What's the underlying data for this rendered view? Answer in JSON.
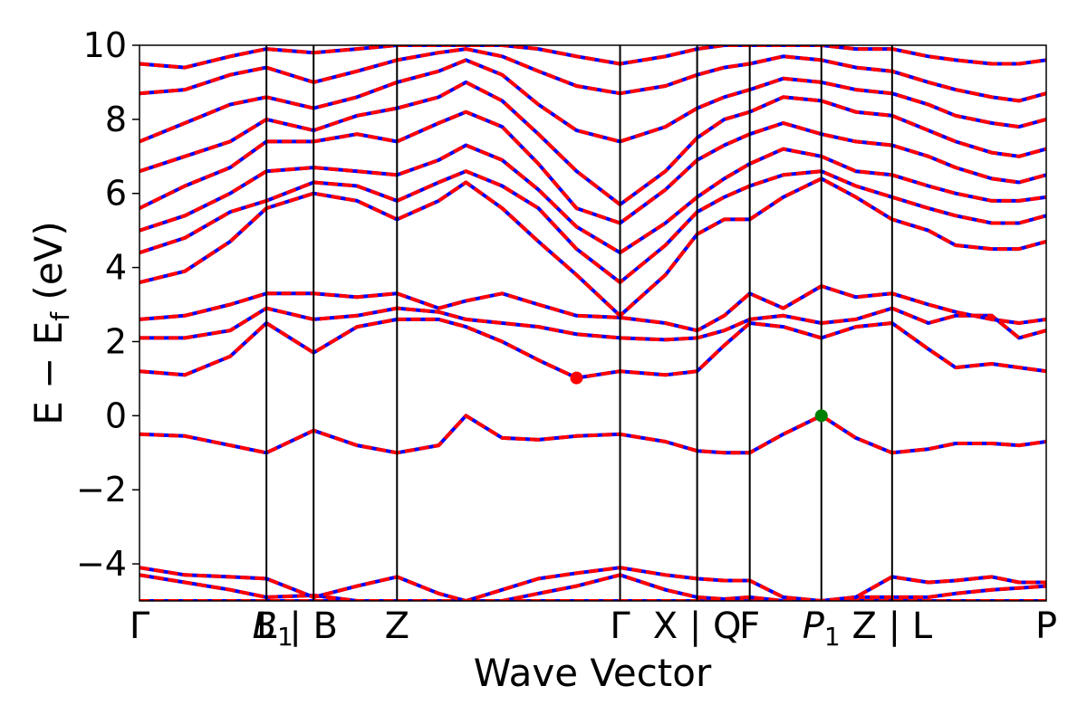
{
  "chart_data": {
    "type": "line",
    "title": "",
    "xlabel": "Wave Vector",
    "ylabel": "E − E_f (eV)",
    "ylabel_main": "E − E",
    "ylabel_sub": "f",
    "ylabel_unit": " (eV)",
    "xlim": [
      0,
      1
    ],
    "ylim": [
      -5,
      10
    ],
    "yticks": [
      -4,
      -2,
      0,
      2,
      4,
      6,
      8,
      10
    ],
    "ytick_labels": [
      "−4",
      "−2",
      "0",
      "2",
      "4",
      "6",
      "8",
      "10"
    ],
    "grid": false,
    "legend": "none",
    "colors": {
      "series_a": "#0000ff",
      "series_b": "#ff0000",
      "cbm_marker": "#ff0000",
      "vbm_marker": "#008000",
      "kpath_lines": "#000000"
    },
    "kpath": [
      {
        "x": 0.0,
        "label": "Γ"
      },
      {
        "x": 0.14,
        "label": "L",
        "line": true
      },
      {
        "x": 0.147,
        "label": "B",
        "sub": "1",
        "italic": true
      },
      {
        "x": 0.192,
        "label": "| B",
        "line": true
      },
      {
        "x": 0.284,
        "label": "Z",
        "line": true
      },
      {
        "x": 0.53,
        "label": "Γ",
        "line": true
      },
      {
        "x": 0.615,
        "label": "X | Q",
        "line": true
      },
      {
        "x": 0.673,
        "label": "F",
        "line": true
      },
      {
        "x": 0.752,
        "label": "P",
        "sub": "1",
        "italic": true,
        "line": true
      },
      {
        "x": 0.83,
        "label": "Z | L",
        "line": true
      },
      {
        "x": 1.0,
        "label": "P"
      }
    ],
    "markers": [
      {
        "name": "cbm",
        "x": 0.482,
        "y": 1.02,
        "color": "#ff0000"
      },
      {
        "name": "vbm",
        "x": 0.752,
        "y": 0.0,
        "color": "#008000"
      }
    ],
    "x": [
      0.0,
      0.05,
      0.1,
      0.14,
      0.192,
      0.24,
      0.284,
      0.33,
      0.36,
      0.4,
      0.44,
      0.482,
      0.53,
      0.58,
      0.615,
      0.645,
      0.673,
      0.71,
      0.752,
      0.79,
      0.83,
      0.87,
      0.9,
      0.94,
      0.97,
      1.0
    ],
    "bands": [
      [
        -5.0,
        -5.0,
        -5.0,
        -5.0,
        -5.0,
        -5.0,
        -5.0,
        -5.0,
        -5.0,
        -5.0,
        -5.0,
        -5.0,
        -5.0,
        -5.0,
        -5.0,
        -5.0,
        -5.0,
        -5.0,
        -5.0,
        -5.0,
        -5.0,
        -5.0,
        -5.0,
        -5.0,
        -5.0,
        -5.0
      ],
      [
        -4.3,
        -4.5,
        -4.7,
        -4.9,
        -4.85,
        -5.0,
        -5.0,
        -5.0,
        -5.0,
        -5.0,
        -4.8,
        -4.6,
        -4.3,
        -4.7,
        -4.9,
        -4.95,
        -4.9,
        -5.0,
        -5.0,
        -4.9,
        -4.9,
        -4.9,
        -4.8,
        -4.7,
        -4.65,
        -4.6
      ],
      [
        -4.1,
        -4.3,
        -4.35,
        -4.4,
        -4.9,
        -4.6,
        -4.35,
        -4.8,
        -5.0,
        -4.7,
        -4.4,
        -4.25,
        -4.1,
        -4.3,
        -4.4,
        -4.45,
        -4.45,
        -4.9,
        -5.0,
        -4.9,
        -4.35,
        -4.5,
        -4.45,
        -4.35,
        -4.5,
        -4.5
      ],
      [
        -0.5,
        -0.55,
        -0.8,
        -1.0,
        -0.4,
        -0.8,
        -1.0,
        -0.8,
        0.0,
        -0.6,
        -0.65,
        -0.55,
        -0.5,
        -0.7,
        -0.95,
        -1.0,
        -1.0,
        -0.5,
        0.0,
        -0.6,
        -1.0,
        -0.9,
        -0.75,
        -0.75,
        -0.8,
        -0.7
      ],
      [
        1.2,
        1.1,
        1.6,
        2.5,
        1.7,
        2.4,
        2.6,
        2.6,
        2.4,
        2.0,
        1.5,
        1.02,
        1.2,
        1.1,
        1.2,
        1.9,
        2.5,
        2.4,
        2.1,
        2.4,
        2.5,
        1.8,
        1.3,
        1.4,
        1.3,
        1.2
      ],
      [
        2.1,
        2.1,
        2.3,
        2.9,
        2.6,
        2.7,
        2.9,
        2.8,
        2.6,
        2.5,
        2.4,
        2.2,
        2.1,
        2.05,
        2.1,
        2.3,
        2.6,
        2.7,
        2.5,
        2.6,
        2.9,
        2.5,
        2.7,
        2.7,
        2.1,
        2.3
      ],
      [
        2.6,
        2.7,
        3.0,
        3.3,
        3.3,
        3.2,
        3.3,
        2.9,
        3.1,
        3.3,
        3.0,
        2.7,
        2.65,
        2.5,
        2.3,
        2.7,
        3.3,
        2.9,
        3.5,
        3.2,
        3.3,
        3.0,
        2.8,
        2.6,
        2.5,
        2.6
      ],
      [
        3.6,
        3.9,
        4.7,
        5.6,
        6.0,
        5.8,
        5.3,
        5.8,
        6.3,
        5.6,
        4.7,
        3.8,
        2.7,
        3.8,
        4.9,
        5.3,
        5.3,
        5.9,
        6.4,
        5.9,
        5.3,
        5.0,
        4.6,
        4.5,
        4.5,
        4.7
      ],
      [
        4.4,
        4.8,
        5.5,
        5.8,
        6.3,
        6.2,
        5.8,
        6.3,
        6.6,
        6.2,
        5.6,
        4.5,
        3.6,
        4.6,
        5.5,
        5.9,
        6.2,
        6.5,
        6.6,
        6.2,
        5.9,
        5.6,
        5.4,
        5.2,
        5.2,
        5.4
      ],
      [
        5.0,
        5.4,
        6.0,
        6.6,
        6.7,
        6.6,
        6.5,
        6.9,
        7.3,
        6.9,
        6.1,
        5.1,
        4.4,
        5.2,
        5.9,
        6.4,
        6.8,
        7.2,
        7.0,
        6.6,
        6.5,
        6.2,
        6.0,
        5.8,
        5.8,
        5.9
      ],
      [
        5.6,
        6.2,
        6.7,
        7.4,
        7.4,
        7.6,
        7.4,
        7.9,
        8.2,
        7.8,
        6.8,
        5.6,
        5.2,
        6.1,
        6.9,
        7.3,
        7.6,
        7.9,
        7.6,
        7.4,
        7.3,
        7.0,
        6.7,
        6.4,
        6.3,
        6.5
      ],
      [
        6.6,
        7.0,
        7.4,
        8.0,
        7.7,
        8.1,
        8.3,
        8.6,
        9.0,
        8.5,
        7.6,
        6.6,
        5.7,
        6.6,
        7.5,
        8.0,
        8.2,
        8.6,
        8.5,
        8.2,
        8.1,
        7.7,
        7.4,
        7.1,
        7.0,
        7.2
      ],
      [
        7.4,
        7.9,
        8.4,
        8.6,
        8.3,
        8.6,
        9.0,
        9.3,
        9.6,
        9.2,
        8.4,
        7.7,
        7.4,
        7.8,
        8.3,
        8.6,
        8.8,
        9.1,
        9.0,
        8.8,
        8.7,
        8.4,
        8.1,
        7.9,
        7.8,
        8.0
      ],
      [
        8.7,
        8.8,
        9.2,
        9.4,
        9.0,
        9.3,
        9.6,
        9.8,
        9.9,
        9.7,
        9.3,
        8.9,
        8.7,
        8.9,
        9.2,
        9.4,
        9.5,
        9.7,
        9.6,
        9.4,
        9.3,
        9.0,
        8.8,
        8.6,
        8.5,
        8.7
      ],
      [
        9.5,
        9.4,
        9.7,
        9.9,
        9.8,
        9.9,
        10.0,
        10.0,
        10.0,
        10.0,
        9.9,
        9.7,
        9.5,
        9.7,
        9.9,
        10.0,
        10.0,
        10.0,
        10.0,
        9.9,
        9.9,
        9.7,
        9.6,
        9.5,
        9.5,
        9.6
      ]
    ]
  }
}
